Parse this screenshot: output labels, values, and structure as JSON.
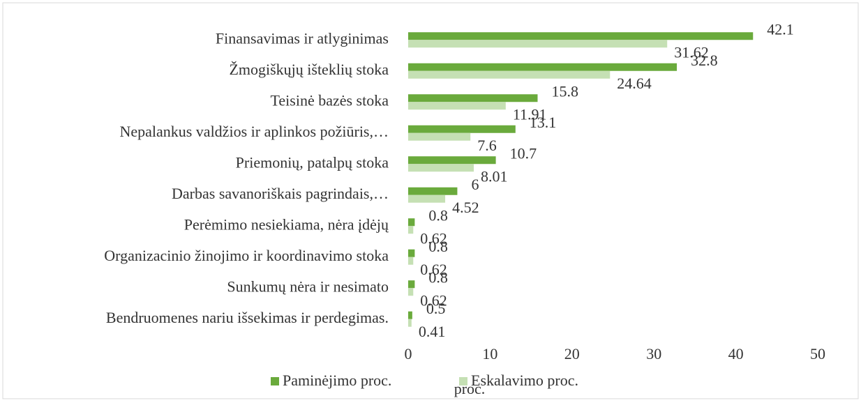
{
  "chart_data": {
    "type": "bar",
    "orientation": "horizontal",
    "xlabel": "proc.",
    "categories": [
      "Finansavimas ir atlyginimas",
      "Žmogiškųjų išteklių stoka",
      "Teisinė bazės stoka",
      "Nepalankus valdžios ir aplinkos požiūris,…",
      "Priemonių, patalpų stoka",
      "Darbas  savanoriškais pagrindais,…",
      "Perėmimo nesiekiama, nėra įdėjų",
      "Organizacinio žinojimo ir koordinavimo stoka",
      "Sunkumų nėra ir nesimato",
      "Bendruomenes nariu išsekimas ir perdegimas."
    ],
    "series": [
      {
        "name": "Paminėjimo proc.",
        "color": "#6aaa3c",
        "values": [
          42.1,
          32.8,
          15.8,
          13.1,
          10.7,
          6,
          0.8,
          0.8,
          0.8,
          0.5
        ]
      },
      {
        "name": "Eskalavimo proc.",
        "color": "#c5e0b4",
        "values": [
          31.62,
          24.64,
          11.91,
          7.6,
          8.01,
          4.52,
          0.62,
          0.62,
          0.62,
          0.41
        ]
      }
    ],
    "xlim": [
      0,
      50
    ],
    "xticks": [
      0,
      10,
      20,
      30,
      40,
      50
    ],
    "grid": false,
    "legend": "bottom"
  }
}
